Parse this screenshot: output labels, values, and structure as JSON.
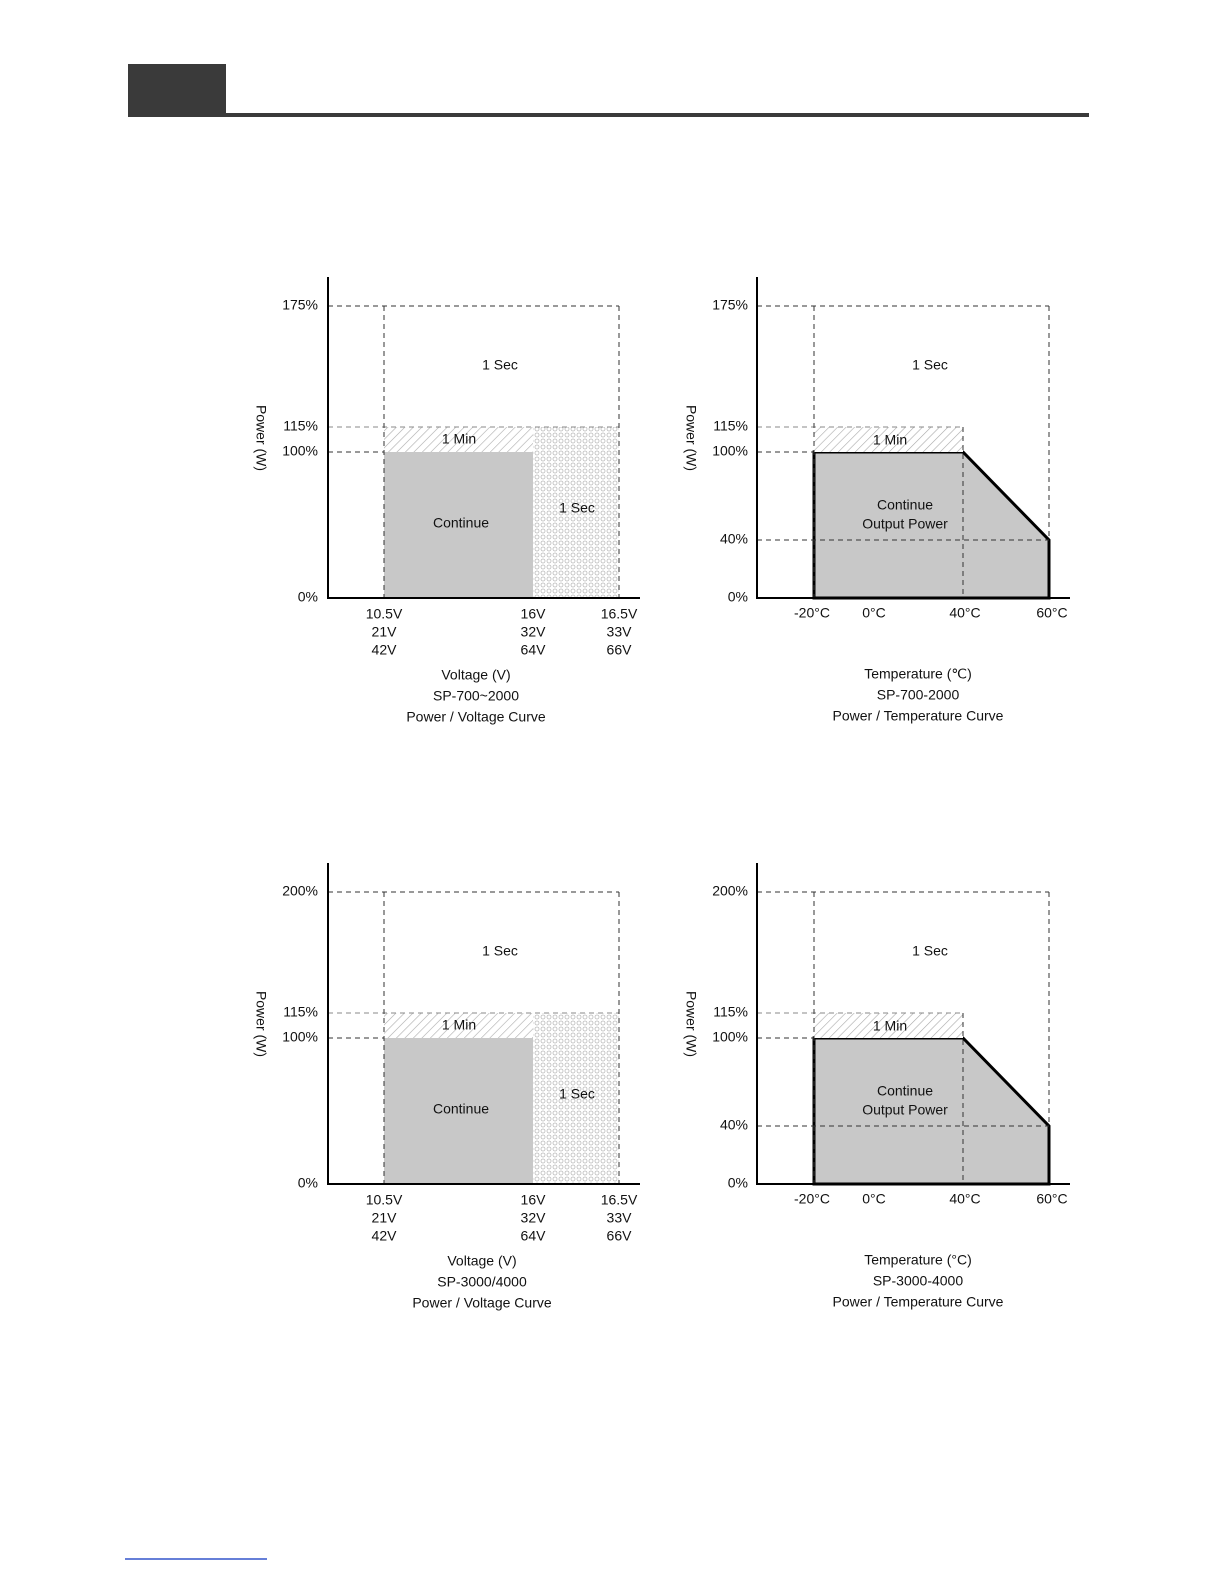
{
  "diagrams": [
    {
      "y_axis_label": "Power (W)",
      "y_labels": [
        "175%",
        "115%",
        "100%",
        "0%"
      ],
      "x_labels": [
        [
          "10.5V",
          "21V",
          "42V"
        ],
        [
          "16V",
          "32V",
          "64V"
        ],
        [
          "16.5V",
          "33V",
          "66V"
        ]
      ],
      "regions": [
        "1 Sec",
        "1 Min",
        "Continue",
        "1 Sec"
      ],
      "caption": [
        "Voltage (V)",
        "SP-700~2000",
        "Power / Voltage Curve"
      ]
    },
    {
      "y_axis_label": "Power (W)",
      "y_labels": [
        "175%",
        "115%",
        "100%",
        "40%",
        "0%"
      ],
      "x_labels": [
        "-20°C",
        "0°C",
        "40°C",
        "60°C"
      ],
      "regions": [
        "1 Sec",
        "1 Min",
        "Continue",
        "Output Power"
      ],
      "caption": [
        "Temperature (℃)",
        "SP-700-2000",
        "Power / Temperature Curve"
      ]
    },
    {
      "y_axis_label": "Power (W)",
      "y_labels": [
        "200%",
        "115%",
        "100%",
        "0%"
      ],
      "x_labels": [
        [
          "10.5V",
          "21V",
          "42V"
        ],
        [
          "16V",
          "32V",
          "64V"
        ],
        [
          "16.5V",
          "33V",
          "66V"
        ]
      ],
      "regions": [
        "1 Sec",
        "1 Min",
        "Continue",
        "1 Sec"
      ],
      "caption": [
        "Voltage (V)",
        "SP-3000/4000",
        "Power / Voltage Curve"
      ]
    },
    {
      "y_axis_label": "Power (W)",
      "y_labels": [
        "200%",
        "115%",
        "100%",
        "40%",
        "0%"
      ],
      "x_labels": [
        "-20°C",
        "0°C",
        "40°C",
        "60°C"
      ],
      "regions": [
        "1 Sec",
        "1 Min",
        "Continue",
        "Output Power"
      ],
      "caption": [
        "Temperature (°C)",
        "SP-3000-4000",
        "Power / Temperature Curve"
      ]
    }
  ]
}
